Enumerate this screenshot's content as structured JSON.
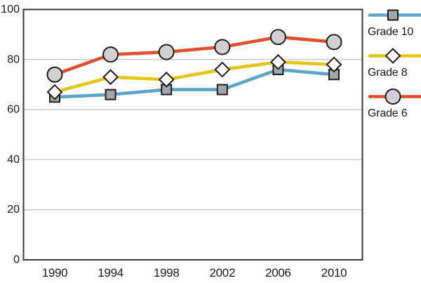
{
  "chart_data": {
    "type": "line",
    "title": "",
    "xlabel": "",
    "ylabel": "",
    "x_categories": [
      "1990",
      "1994",
      "1998",
      "2002",
      "2006",
      "2010"
    ],
    "y_ticks": [
      0,
      20,
      40,
      60,
      80,
      100
    ],
    "ylim": [
      0,
      100
    ],
    "grid": "horizontal",
    "legend_position": "right",
    "series": [
      {
        "name": "Grade 10",
        "marker": "square",
        "line_color": "#5ca5c7",
        "marker_fill": "#a6a6a8",
        "values": [
          65,
          66,
          68,
          68,
          76,
          74
        ]
      },
      {
        "name": "Grade 8",
        "marker": "diamond",
        "line_color": "#e2c613",
        "marker_fill": "#ffffff",
        "values": [
          67,
          73,
          72,
          76,
          79,
          78
        ]
      },
      {
        "name": "Grade 6",
        "marker": "circle",
        "line_color": "#e0502d",
        "marker_fill": "#d1d1d3",
        "values": [
          74,
          82,
          83,
          85,
          89,
          87
        ]
      }
    ],
    "colors": {
      "marker_stroke": "#1d1d1d",
      "axis": "#363636",
      "grid": "#c7c7c7",
      "text": "#1a1a1a",
      "background": "#ffffff"
    }
  }
}
